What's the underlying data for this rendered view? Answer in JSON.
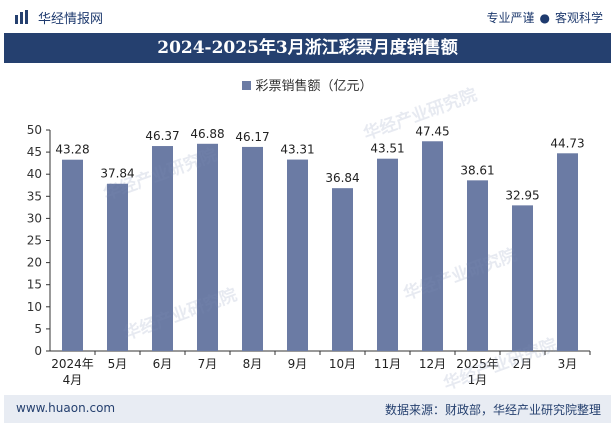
{
  "header": {
    "brand_name": "华经情报网",
    "slogan_left": "专业严谨",
    "slogan_right": "客观科学"
  },
  "watermark_text": "华经产业研究院",
  "footer": {
    "url": "www.huaon.com",
    "source": "数据来源：财政部，华经产业研究院整理"
  },
  "colors": {
    "bar": "#6b7ba4",
    "title_band": "#25406f",
    "footer_band": "#e8ecf3"
  },
  "chart_data": {
    "type": "bar",
    "title": "2024-2025年3月浙江彩票月度销售额",
    "categories": [
      "2024年4月",
      "5月",
      "6月",
      "7月",
      "8月",
      "9月",
      "10月",
      "11月",
      "12月",
      "2025年1月",
      "2月",
      "3月"
    ],
    "series": [
      {
        "name": "彩票销售额（亿元）",
        "values": [
          43.28,
          37.84,
          46.37,
          46.88,
          46.17,
          43.31,
          36.84,
          43.51,
          47.45,
          38.61,
          32.95,
          44.73
        ]
      }
    ],
    "ylim": [
      0,
      50
    ],
    "yticks": [
      0,
      5,
      10,
      15,
      20,
      25,
      30,
      35,
      40,
      45,
      50
    ],
    "grid": false,
    "legend_position": "top-center"
  }
}
